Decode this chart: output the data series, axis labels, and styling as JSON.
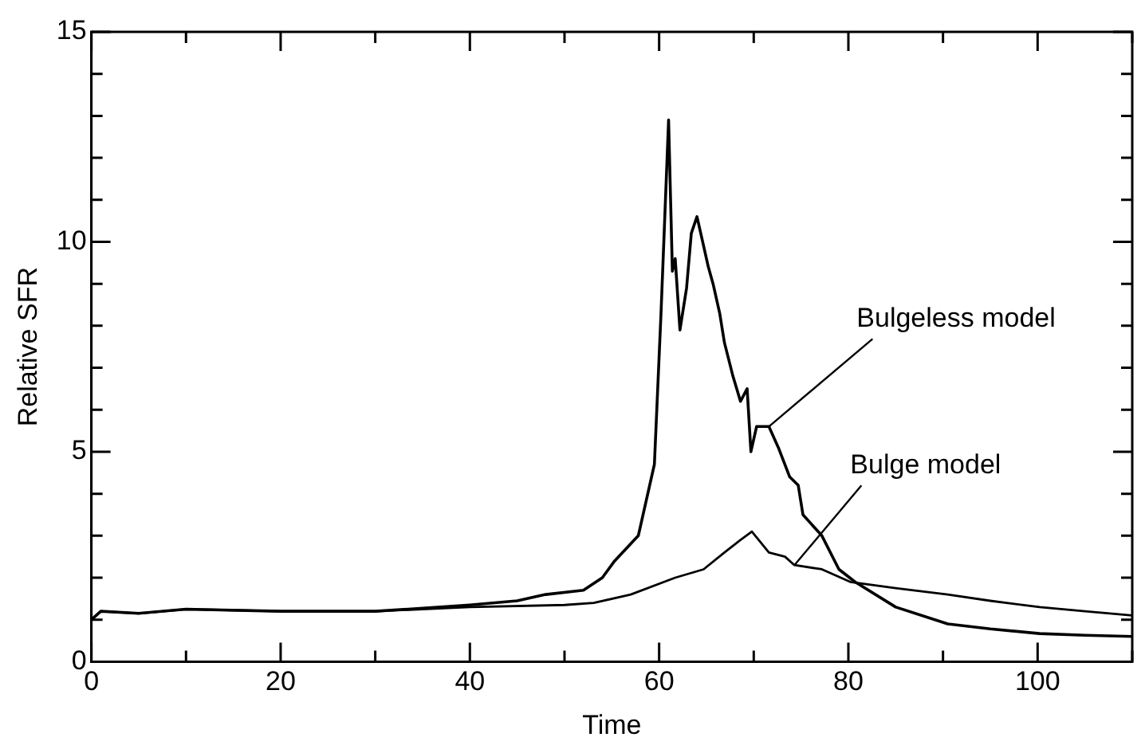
{
  "chart_data": {
    "type": "line",
    "xlabel": "Time",
    "ylabel": "Relative SFR",
    "xlim": [
      0,
      110
    ],
    "ylim": [
      0,
      15
    ],
    "xticks": [
      0,
      {
        "value": 10,
        "label": null
      },
      20,
      {
        "value": 30,
        "label": null
      },
      40,
      {
        "value": 50,
        "label": null
      },
      60,
      {
        "value": 70,
        "label": null
      },
      80,
      {
        "value": 90,
        "label": null
      },
      100,
      {
        "value": 110,
        "label": null
      }
    ],
    "yticks": [
      0,
      {
        "value": 1,
        "label": null
      },
      {
        "value": 2,
        "label": null
      },
      {
        "value": 3,
        "label": null
      },
      {
        "value": 4,
        "label": null
      },
      5,
      {
        "value": 6,
        "label": null
      },
      {
        "value": 7,
        "label": null
      },
      {
        "value": 8,
        "label": null
      },
      {
        "value": 9,
        "label": null
      },
      10,
      {
        "value": 11,
        "label": null
      },
      {
        "value": 12,
        "label": null
      },
      {
        "value": 13,
        "label": null
      },
      {
        "value": 14,
        "label": null
      },
      15
    ],
    "grid": false,
    "legend": false,
    "marker": "none",
    "line_style": "solid",
    "series": [
      {
        "color": "#000000",
        "x": [
          0,
          1,
          5,
          10,
          20,
          30,
          40,
          45,
          48,
          52,
          54,
          55.3,
          57.8,
          59.5,
          60.2,
          61,
          61.4,
          61.7,
          62.2,
          62.9,
          63.4,
          64,
          64.6,
          65.2,
          65.7,
          66.4,
          66.9,
          67.8,
          68.6,
          69.3,
          69.7,
          70.3,
          71.6,
          72.6,
          73.8,
          74.7,
          75.2,
          77.2,
          79,
          80.7,
          85,
          90.5,
          95,
          100.2,
          105,
          110
        ],
        "values": [
          1,
          1.2,
          1.15,
          1.25,
          1.2,
          1.2,
          1.35,
          1.45,
          1.6,
          1.7,
          2,
          2.4,
          3,
          4.7,
          8.3,
          12.9,
          9.3,
          9.6,
          7.9,
          8.9,
          10.2,
          10.6,
          10,
          9.4,
          9,
          8.3,
          7.6,
          6.8,
          6.2,
          6.5,
          5,
          5.6,
          5.6,
          5.1,
          4.4,
          4.2,
          3.5,
          3,
          2.2,
          1.9,
          1.3,
          0.9,
          0.78,
          0.67,
          0.63,
          0.6
        ]
      },
      {
        "color": "#000000",
        "x": [
          0,
          1,
          5,
          10,
          20,
          30,
          40,
          50,
          53.1,
          57,
          61.7,
          64.7,
          66.9,
          68.6,
          69.8,
          71.6,
          73.3,
          74.3,
          77.2,
          80.2,
          85,
          90.5,
          95,
          100.2,
          105,
          110
        ],
        "values": [
          1,
          1.2,
          1.15,
          1.25,
          1.2,
          1.2,
          1.3,
          1.35,
          1.4,
          1.6,
          2,
          2.2,
          2.6,
          2.9,
          3.1,
          2.6,
          2.5,
          2.3,
          2.2,
          1.9,
          1.75,
          1.6,
          1.45,
          1.3,
          1.2,
          1.1
        ]
      }
    ],
    "annotations": [
      {
        "text": "Bulgeless model",
        "x": 71.6,
        "y": 5.6
      },
      {
        "text": "Bulge model",
        "x": 74.3,
        "y": 2.3
      }
    ]
  }
}
